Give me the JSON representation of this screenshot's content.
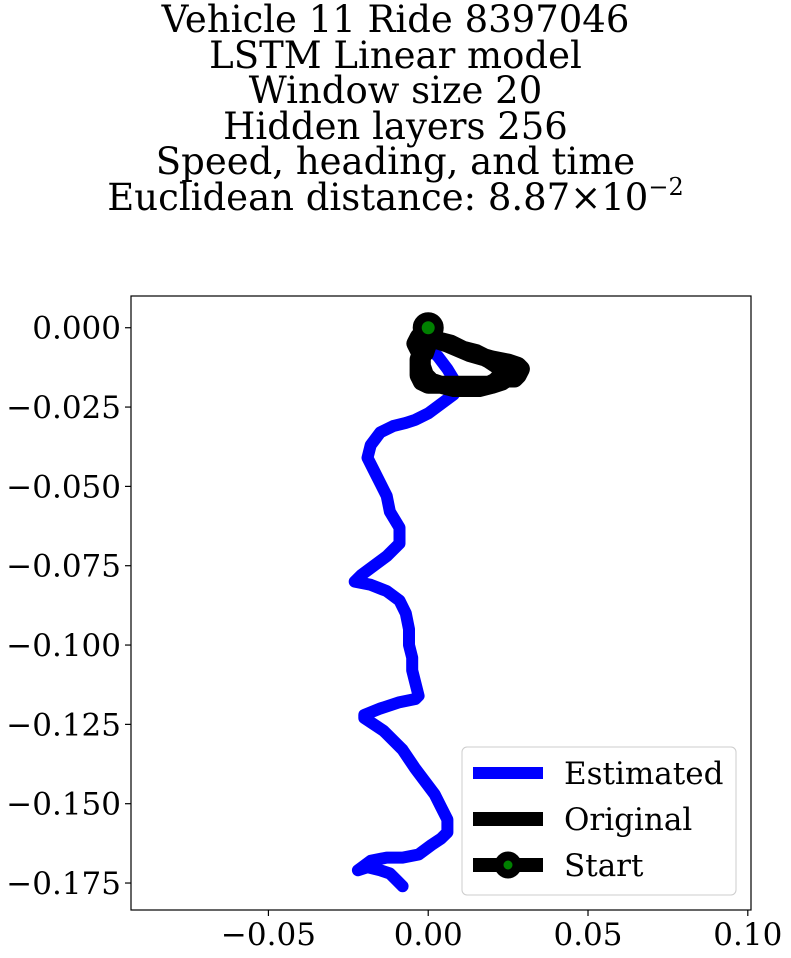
{
  "chart_data": {
    "type": "line",
    "title_lines": [
      "Vehicle 11 Ride 8397046",
      "LSTM Linear model",
      "Window size 20",
      "Hidden layers 256",
      "Speed, heading, and time"
    ],
    "distance_prefix": "Euclidean distance: ",
    "distance_mantissa": "8.87",
    "distance_times": "×",
    "distance_base": "10",
    "distance_exponent": "−2",
    "xlabel": "",
    "ylabel": "",
    "xlim": [
      -0.093,
      0.101
    ],
    "ylim": [
      -0.1835,
      0.01
    ],
    "xticks": [
      -0.05,
      0.0,
      0.05,
      0.1
    ],
    "xtick_labels": [
      "−0.05",
      "0.00",
      "0.05",
      "0.10"
    ],
    "yticks": [
      0.0,
      -0.025,
      -0.05,
      -0.075,
      -0.1,
      -0.125,
      -0.15,
      -0.175
    ],
    "ytick_labels": [
      "0.000",
      "−0.025",
      "−0.050",
      "−0.075",
      "−0.100",
      "−0.125",
      "−0.150",
      "−0.175"
    ],
    "grid": false,
    "legend_position": "lower-right",
    "series": [
      {
        "name": "Estimated",
        "color": "#0000ff",
        "x": [
          0.0,
          0.003,
          0.006,
          0.009,
          0.008,
          0.004,
          0.0,
          -0.004,
          -0.007,
          -0.011,
          -0.015,
          -0.018,
          -0.019,
          -0.017,
          -0.015,
          -0.013,
          -0.012,
          -0.009,
          -0.009,
          -0.013,
          -0.017,
          -0.021,
          -0.023,
          -0.018,
          -0.013,
          -0.009,
          -0.007,
          -0.006,
          -0.006,
          -0.005,
          -0.005,
          -0.004,
          -0.003,
          -0.004,
          -0.009,
          -0.015,
          -0.02,
          -0.02,
          -0.014,
          -0.008,
          -0.004,
          -0.001,
          0.002,
          0.004,
          0.006,
          0.006,
          0.004,
          0.001,
          -0.003,
          -0.008,
          -0.013,
          -0.018,
          -0.022,
          -0.019,
          -0.015,
          -0.012,
          -0.01,
          -0.008
        ],
        "y": [
          -0.006,
          -0.009,
          -0.013,
          -0.018,
          -0.021,
          -0.024,
          -0.027,
          -0.029,
          -0.03,
          -0.031,
          -0.033,
          -0.037,
          -0.041,
          -0.045,
          -0.049,
          -0.053,
          -0.058,
          -0.063,
          -0.068,
          -0.072,
          -0.075,
          -0.078,
          -0.08,
          -0.081,
          -0.083,
          -0.086,
          -0.09,
          -0.095,
          -0.1,
          -0.104,
          -0.108,
          -0.112,
          -0.116,
          -0.117,
          -0.118,
          -0.12,
          -0.122,
          -0.123,
          -0.127,
          -0.133,
          -0.139,
          -0.143,
          -0.147,
          -0.151,
          -0.155,
          -0.159,
          -0.161,
          -0.163,
          -0.166,
          -0.167,
          -0.167,
          -0.168,
          -0.171,
          -0.17,
          -0.171,
          -0.172,
          -0.174,
          -0.176
        ]
      },
      {
        "name": "Original",
        "color": "#000000",
        "x": [
          0.0,
          0.0,
          -0.001,
          -0.002,
          -0.003,
          -0.003,
          -0.003,
          -0.002,
          0.0,
          0.003,
          0.007,
          0.011,
          0.016,
          0.019,
          0.021,
          0.022,
          0.023,
          0.025,
          0.027,
          0.028,
          0.029,
          0.028,
          0.025,
          0.02,
          0.013,
          0.006,
          0.0,
          -0.003,
          -0.004,
          -0.003,
          -0.001,
          0.0,
          0.0,
          0.003,
          0.007,
          0.011,
          0.015,
          0.019,
          0.022,
          0.025,
          0.026,
          0.026,
          0.023,
          0.02,
          0.016,
          0.012,
          0.008,
          0.004,
          0.001,
          -0.001,
          -0.002,
          -0.002,
          -0.001,
          0.0,
          0.001
        ],
        "y": [
          0.0,
          -0.002,
          -0.004,
          -0.007,
          -0.01,
          -0.013,
          -0.015,
          -0.017,
          -0.018,
          -0.018,
          -0.018,
          -0.018,
          -0.018,
          -0.018,
          -0.017,
          -0.016,
          -0.015,
          -0.016,
          -0.016,
          -0.015,
          -0.013,
          -0.012,
          -0.011,
          -0.01,
          -0.008,
          -0.005,
          -0.003,
          -0.003,
          -0.005,
          -0.007,
          -0.008,
          -0.005,
          -0.002,
          -0.004,
          -0.005,
          -0.007,
          -0.008,
          -0.01,
          -0.012,
          -0.013,
          -0.014,
          -0.015,
          -0.017,
          -0.018,
          -0.019,
          -0.019,
          -0.019,
          -0.018,
          -0.017,
          -0.015,
          -0.012,
          -0.009,
          -0.006,
          -0.003,
          -0.001
        ]
      }
    ],
    "start_marker": {
      "name": "Start",
      "x": 0.0,
      "y": 0.0,
      "edge_color": "#000000",
      "face_color": "#008000"
    }
  }
}
